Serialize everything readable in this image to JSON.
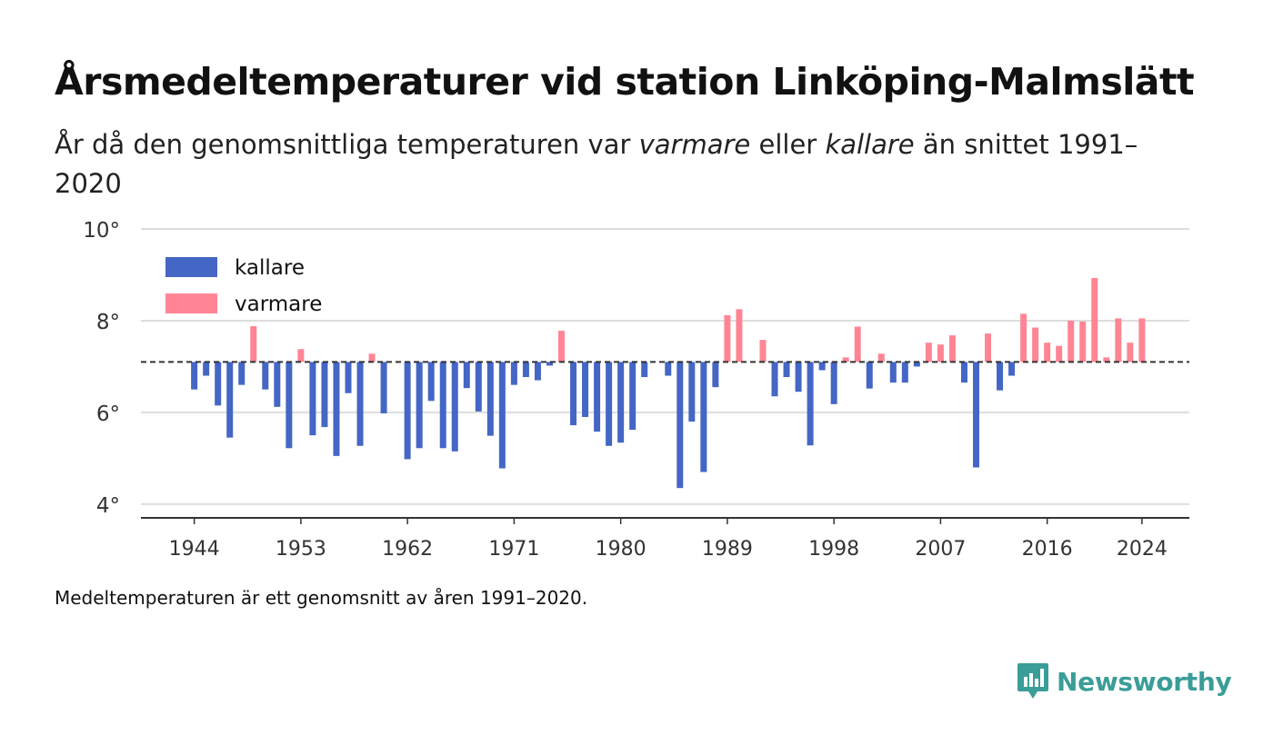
{
  "header": {
    "title": "Årsmedeltemperaturer vid station Linköping-Malmslätt",
    "subtitle_part1": "År då den genomsnittliga temperaturen var ",
    "subtitle_warm": "varmare",
    "subtitle_part2": " eller ",
    "subtitle_cold": "kallare",
    "subtitle_part3": " än snittet 1991–2020"
  },
  "footer": {
    "note": "Medeltemperaturen är ett genomsnitt av åren 1991–2020.",
    "logo_text": "Newsworthy",
    "logo_icon": "newsworthy-chart-icon"
  },
  "colors": {
    "cold": "#4466c4",
    "warm": "#ff8594",
    "grid": "#dddddd",
    "logo": "#3a9d98"
  },
  "chart_data": {
    "type": "bar",
    "baseline": 7.1,
    "baseline_style": "dashed",
    "ylim": [
      3.7,
      10
    ],
    "yticks": [
      4,
      6,
      8,
      10
    ],
    "ytick_labels": [
      "4°",
      "6°",
      "8°",
      "10°"
    ],
    "xticks": [
      1944,
      1953,
      1962,
      1971,
      1980,
      1989,
      1998,
      2007,
      2016,
      2024
    ],
    "xlim": [
      1939.5,
      2028
    ],
    "grid": true,
    "legend_position": "top-left",
    "legend": [
      {
        "key": "cold",
        "label": "kallare"
      },
      {
        "key": "warm",
        "label": "varmare"
      }
    ],
    "x": [
      1944,
      1945,
      1946,
      1947,
      1948,
      1949,
      1950,
      1951,
      1952,
      1953,
      1954,
      1955,
      1956,
      1957,
      1958,
      1959,
      1960,
      1961,
      1962,
      1963,
      1964,
      1965,
      1966,
      1967,
      1968,
      1969,
      1970,
      1971,
      1972,
      1973,
      1974,
      1975,
      1976,
      1977,
      1978,
      1979,
      1980,
      1981,
      1982,
      1983,
      1984,
      1985,
      1986,
      1987,
      1988,
      1989,
      1990,
      1991,
      1992,
      1993,
      1994,
      1995,
      1996,
      1997,
      1998,
      1999,
      2000,
      2001,
      2002,
      2003,
      2004,
      2005,
      2006,
      2007,
      2008,
      2009,
      2010,
      2011,
      2012,
      2013,
      2014,
      2015,
      2016,
      2017,
      2018,
      2019,
      2020,
      2021,
      2022,
      2023,
      2024
    ],
    "values": [
      6.5,
      6.8,
      6.15,
      5.45,
      6.6,
      7.88,
      6.5,
      6.12,
      5.22,
      7.38,
      5.5,
      5.68,
      5.05,
      6.42,
      5.27,
      7.28,
      5.98,
      7.1,
      4.98,
      5.22,
      6.25,
      5.22,
      5.15,
      6.53,
      6.02,
      5.49,
      4.78,
      6.6,
      6.77,
      6.7,
      7.02,
      7.78,
      5.72,
      5.9,
      5.58,
      5.27,
      5.34,
      5.62,
      6.77,
      7.1,
      6.8,
      4.35,
      5.8,
      4.7,
      6.55,
      8.12,
      8.25,
      7.1,
      7.58,
      6.35,
      6.77,
      6.45,
      5.28,
      6.92,
      6.18,
      7.2,
      7.87,
      6.52,
      7.28,
      6.65,
      6.65,
      7.0,
      7.52,
      7.48,
      7.68,
      6.65,
      4.8,
      7.72,
      6.48,
      6.8,
      8.15,
      7.85,
      7.52,
      7.45,
      8.0,
      7.98,
      8.93,
      7.2,
      8.05,
      7.52,
      8.05
    ]
  }
}
